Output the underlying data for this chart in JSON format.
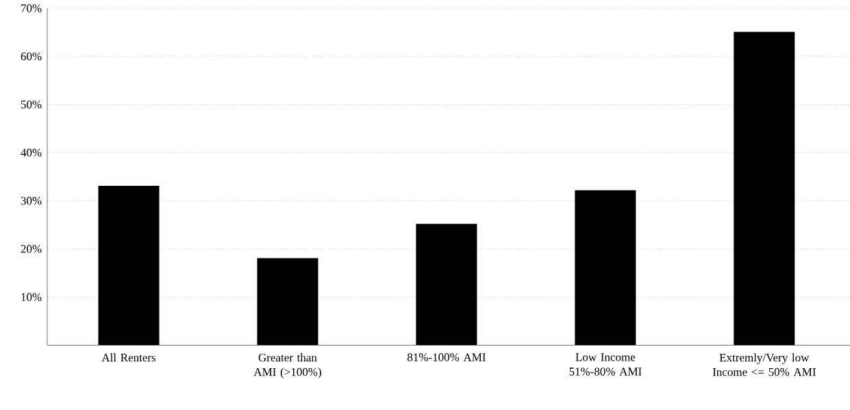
{
  "chart_data": {
    "type": "bar",
    "categories": [
      "All Renters",
      "Greater than AMI (>100%)",
      "81%-100% AMI",
      "Low Income 51%-80% AMI",
      "Extremly/Very low Income <= 50% AMI"
    ],
    "values": [
      33.1,
      18.1,
      25.2,
      32.2,
      65.1
    ],
    "color": "#000000",
    "ylim": [
      0,
      70
    ],
    "yticks": [
      {
        "value": 10,
        "label": "10%"
      },
      {
        "value": 20,
        "label": "20%"
      },
      {
        "value": 30,
        "label": "30%"
      },
      {
        "value": 40,
        "label": "40%"
      },
      {
        "value": 50,
        "label": "50%"
      },
      {
        "value": 60,
        "label": "60%"
      },
      {
        "value": 70,
        "label": "70%"
      }
    ],
    "grid": "y"
  }
}
